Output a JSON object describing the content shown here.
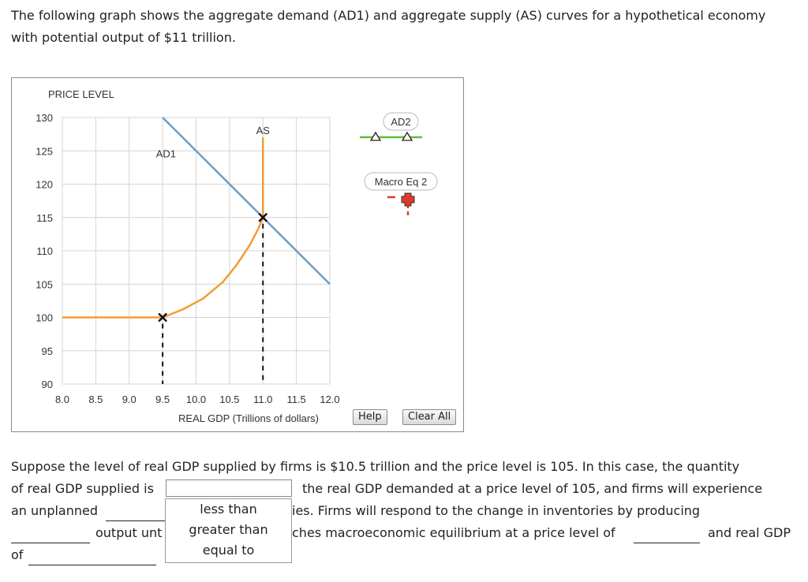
{
  "intro_text": "The following graph shows the aggregate demand (AD1) and aggregate supply (AS) curves for a hypothetical economy with potential output of $11 trillion.",
  "buttons": {
    "help": "Help",
    "clear_all": "Clear All"
  },
  "question": {
    "line1": "Suppose the level of real GDP supplied by firms is $10.5 trillion and the price level is 105. In this case, the quantity",
    "line2a": "of real GDP supplied is",
    "line2b": "the real GDP demanded at a price level of 105, and firms will experience",
    "line3a": "an unplanned",
    "line3b": "ies. Firms will respond to the change in inventories by producing",
    "line4a": "output unt",
    "line4b": "ches macroeconomic equilibrium at a price level of",
    "line4c": "and real GDP",
    "line5a": "of"
  },
  "dropdown_options": [
    "less than",
    "greater than",
    "equal to"
  ],
  "chart_data": {
    "type": "line",
    "ylabel": "PRICE LEVEL",
    "xlabel": "REAL GDP (Trillions of dollars)",
    "xlim": [
      8.0,
      12.0
    ],
    "ylim": [
      90,
      130
    ],
    "x_ticks": [
      "8.0",
      "8.5",
      "9.0",
      "9.5",
      "10.0",
      "10.5",
      "11.0",
      "11.5",
      "12.0"
    ],
    "y_ticks": [
      "130",
      "125",
      "120",
      "115",
      "110",
      "105",
      "100",
      "95",
      "90"
    ],
    "grid": true,
    "series": [
      {
        "name": "AD1",
        "color": "#6b9ec4",
        "points": [
          [
            9.5,
            130
          ],
          [
            12.0,
            105
          ]
        ]
      },
      {
        "name": "AS",
        "color": "#f39c34",
        "points": [
          [
            8.0,
            100
          ],
          [
            9.5,
            100
          ],
          [
            9.8,
            101.2
          ],
          [
            10.1,
            102.8
          ],
          [
            10.4,
            105.3
          ],
          [
            10.6,
            107.8
          ],
          [
            10.8,
            110.8
          ],
          [
            10.93,
            113.3
          ],
          [
            11.0,
            115
          ],
          [
            11.0,
            127
          ]
        ]
      }
    ],
    "markers": [
      {
        "x": 9.5,
        "y": 100,
        "shape": "x",
        "dashed_drop": true
      },
      {
        "x": 11.0,
        "y": 115,
        "shape": "x",
        "dashed_drop": true
      }
    ],
    "palette": [
      {
        "label": "AD2",
        "color": "#5bbf3a",
        "shape": "triangle"
      },
      {
        "label": "Macro Eq 2",
        "color": "#e0392b",
        "shape": "cross"
      }
    ]
  }
}
